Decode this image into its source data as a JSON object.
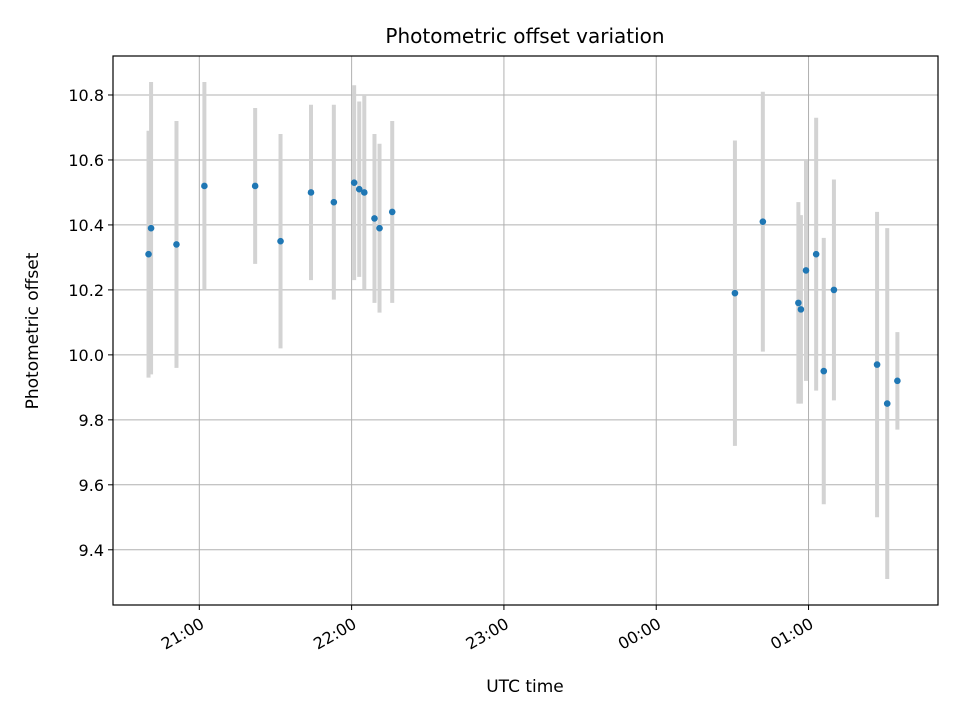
{
  "chart_data": {
    "type": "scatter",
    "title": "Photometric offset variation",
    "xlabel": "UTC time",
    "ylabel": "Photometric offset",
    "x_axis": {
      "type": "time",
      "range": [
        "2000-01-01T20:26:00",
        "2000-01-02T01:51:00"
      ],
      "ticks": [
        {
          "value": "2000-01-01T21:00:00",
          "label": "21:00"
        },
        {
          "value": "2000-01-01T22:00:00",
          "label": "22:00"
        },
        {
          "value": "2000-01-01T23:00:00",
          "label": "23:00"
        },
        {
          "value": "2000-01-02T00:00:00",
          "label": "00:00"
        },
        {
          "value": "2000-01-02T01:00:00",
          "label": "01:00"
        }
      ]
    },
    "y_axis": {
      "range": [
        9.23,
        10.92
      ],
      "ticks": [
        9.4,
        9.6,
        9.8,
        10.0,
        10.2,
        10.4,
        10.6,
        10.8
      ]
    },
    "grid": true,
    "colors": {
      "point": "#1f77b4",
      "errorbar": "#d3d3d3",
      "grid": "#b0b0b0"
    },
    "points": [
      {
        "x": "2000-01-01T20:40:00",
        "y": 10.31,
        "err": 0.38
      },
      {
        "x": "2000-01-01T20:41:00",
        "y": 10.39,
        "err": 0.45
      },
      {
        "x": "2000-01-01T20:51:00",
        "y": 10.34,
        "err": 0.38
      },
      {
        "x": "2000-01-01T21:02:00",
        "y": 10.52,
        "err": 0.32
      },
      {
        "x": "2000-01-01T21:22:00",
        "y": 10.52,
        "err": 0.24
      },
      {
        "x": "2000-01-01T21:32:00",
        "y": 10.35,
        "err": 0.33
      },
      {
        "x": "2000-01-01T21:44:00",
        "y": 10.5,
        "err": 0.27
      },
      {
        "x": "2000-01-01T21:53:00",
        "y": 10.47,
        "err": 0.3
      },
      {
        "x": "2000-01-01T22:01:00",
        "y": 10.53,
        "err": 0.3
      },
      {
        "x": "2000-01-01T22:03:00",
        "y": 10.51,
        "err": 0.27
      },
      {
        "x": "2000-01-01T22:05:00",
        "y": 10.5,
        "err": 0.3
      },
      {
        "x": "2000-01-01T22:09:00",
        "y": 10.42,
        "err": 0.26
      },
      {
        "x": "2000-01-01T22:11:00",
        "y": 10.39,
        "err": 0.26
      },
      {
        "x": "2000-01-01T22:16:00",
        "y": 10.44,
        "err": 0.28
      },
      {
        "x": "2000-01-02T00:31:00",
        "y": 10.19,
        "err": 0.47
      },
      {
        "x": "2000-01-02T00:42:00",
        "y": 10.41,
        "err": 0.4
      },
      {
        "x": "2000-01-02T00:56:00",
        "y": 10.16,
        "err": 0.31
      },
      {
        "x": "2000-01-02T00:57:00",
        "y": 10.14,
        "err": 0.29
      },
      {
        "x": "2000-01-02T00:59:00",
        "y": 10.26,
        "err": 0.34
      },
      {
        "x": "2000-01-02T01:03:00",
        "y": 10.31,
        "err": 0.42
      },
      {
        "x": "2000-01-02T01:06:00",
        "y": 9.95,
        "err": 0.41
      },
      {
        "x": "2000-01-02T01:10:00",
        "y": 10.2,
        "err": 0.34
      },
      {
        "x": "2000-01-02T01:27:00",
        "y": 9.97,
        "err": 0.47
      },
      {
        "x": "2000-01-02T01:31:00",
        "y": 9.85,
        "err": 0.54
      },
      {
        "x": "2000-01-02T01:35:00",
        "y": 9.92,
        "err": 0.15
      }
    ]
  }
}
